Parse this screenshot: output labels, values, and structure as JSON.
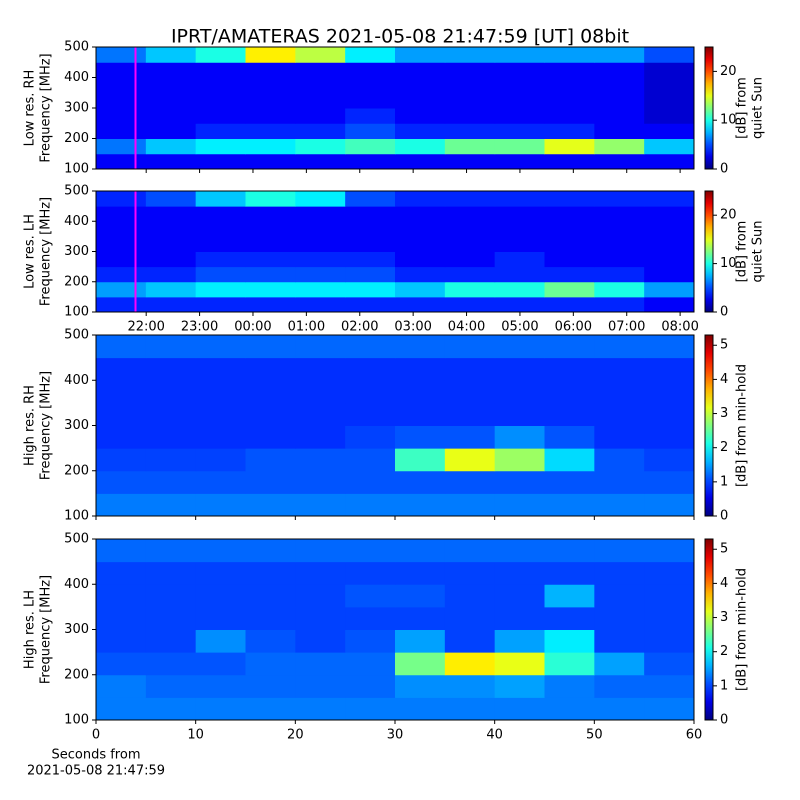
{
  "title": "IPRT/AMATERAS 2021-05-08 21:47:59 [UT]   08bit",
  "chart_data": [
    {
      "type": "heatmap",
      "ylabel": [
        "Low res. RH",
        "Frequency [MHz]"
      ],
      "colorbar_label": [
        "[dB] from",
        "quiet Sun"
      ],
      "xlim": [
        21.06,
        32.26
      ],
      "ylim": [
        100,
        500
      ],
      "yticks": [
        100,
        200,
        300,
        400,
        500
      ],
      "zlim": [
        0,
        25
      ],
      "zticks": [
        0,
        10,
        20
      ],
      "marker_x": 21.8,
      "marker_color": "#ff00ff",
      "z": [
        [
          3,
          3,
          3,
          3,
          3,
          3,
          3,
          3,
          3,
          3,
          3,
          3
        ],
        [
          6,
          8,
          9,
          9,
          10,
          11,
          10,
          12,
          12,
          15,
          13,
          8
        ],
        [
          3,
          3,
          4,
          4,
          4,
          5,
          4,
          4,
          4,
          4,
          3,
          3
        ],
        [
          3,
          3,
          3,
          3,
          3,
          4,
          3,
          3,
          3,
          3,
          3,
          2
        ],
        [
          3,
          3,
          3,
          3,
          3,
          3,
          3,
          3,
          3,
          3,
          3,
          2
        ],
        [
          3,
          3,
          3,
          3,
          3,
          3,
          3,
          3,
          3,
          3,
          3,
          2
        ],
        [
          3,
          3,
          3,
          3,
          3,
          3,
          3,
          3,
          3,
          3,
          3,
          2
        ],
        [
          6,
          8,
          10,
          16,
          14,
          9,
          7,
          7,
          7,
          7,
          7,
          5
        ]
      ]
    },
    {
      "type": "heatmap",
      "ylabel": [
        "Low res. LH",
        "Frequency [MHz]"
      ],
      "colorbar_label": [
        "[dB] from",
        "quiet Sun"
      ],
      "xlim": [
        21.06,
        32.26
      ],
      "ylim": [
        100,
        500
      ],
      "yticks": [
        100,
        200,
        300,
        400,
        500
      ],
      "zlim": [
        0,
        25
      ],
      "zticks": [
        0,
        10,
        20
      ],
      "xticks": [
        {
          "value": 22,
          "label": "22:00"
        },
        {
          "value": 23,
          "label": "23:00"
        },
        {
          "value": 24,
          "label": "00:00"
        },
        {
          "value": 25,
          "label": "01:00"
        },
        {
          "value": 26,
          "label": "02:00"
        },
        {
          "value": 27,
          "label": "03:00"
        },
        {
          "value": 28,
          "label": "04:00"
        },
        {
          "value": 29,
          "label": "05:00"
        },
        {
          "value": 30,
          "label": "06:00"
        },
        {
          "value": 31,
          "label": "07:00"
        },
        {
          "value": 32,
          "label": "08:00"
        }
      ],
      "marker_x": 21.8,
      "marker_color": "#ff00ff",
      "z": [
        [
          4,
          4,
          4,
          4,
          4,
          4,
          4,
          4,
          4,
          4,
          4,
          3
        ],
        [
          7,
          8,
          9,
          9,
          9,
          9,
          8,
          10,
          10,
          12,
          10,
          7
        ],
        [
          4,
          4,
          5,
          5,
          5,
          5,
          4,
          4,
          4,
          4,
          4,
          3
        ],
        [
          3,
          3,
          4,
          4,
          4,
          4,
          3,
          3,
          4,
          3,
          3,
          3
        ],
        [
          3,
          3,
          3,
          3,
          3,
          3,
          3,
          3,
          3,
          3,
          3,
          3
        ],
        [
          3,
          3,
          3,
          3,
          3,
          3,
          3,
          3,
          3,
          3,
          3,
          3
        ],
        [
          3,
          3,
          3,
          3,
          3,
          3,
          3,
          3,
          3,
          3,
          3,
          3
        ],
        [
          4,
          5,
          8,
          10,
          9,
          5,
          4,
          4,
          4,
          4,
          4,
          4
        ]
      ]
    },
    {
      "type": "heatmap",
      "ylabel": [
        "High res. RH",
        "Frequency [MHz]"
      ],
      "colorbar_label": [
        "[dB] from min-hold"
      ],
      "xlim": [
        0,
        60
      ],
      "ylim": [
        100,
        500
      ],
      "yticks": [
        100,
        200,
        300,
        400,
        500
      ],
      "zlim": [
        0,
        5.3
      ],
      "zticks": [
        0,
        1,
        2,
        3,
        4,
        5
      ],
      "z": [
        [
          1.3,
          1.3,
          1.3,
          1.3,
          1.3,
          1.3,
          1.3,
          1.3,
          1.3,
          1.3,
          1.3,
          1.3
        ],
        [
          1.1,
          1.1,
          1.1,
          1.1,
          1.1,
          1.1,
          1.1,
          1.1,
          1.1,
          1.1,
          1.1,
          1.1
        ],
        [
          1,
          1,
          1,
          1.1,
          1.1,
          1.1,
          2.3,
          3.2,
          2.8,
          1.8,
          1.1,
          1
        ],
        [
          0.9,
          0.9,
          0.9,
          0.9,
          0.9,
          1,
          1.1,
          1.1,
          1.4,
          1.1,
          0.9,
          0.9
        ],
        [
          0.9,
          0.9,
          0.9,
          0.9,
          0.9,
          0.9,
          0.9,
          0.9,
          0.9,
          0.9,
          0.9,
          0.9
        ],
        [
          0.9,
          0.9,
          0.9,
          0.9,
          0.9,
          0.9,
          0.9,
          0.9,
          0.9,
          0.9,
          0.9,
          0.9
        ],
        [
          0.9,
          0.9,
          0.9,
          0.9,
          0.9,
          0.9,
          0.9,
          0.9,
          0.9,
          0.9,
          0.9,
          0.9
        ],
        [
          1.2,
          1.2,
          1.2,
          1.2,
          1.2,
          1.2,
          1.2,
          1.2,
          1.2,
          1.2,
          1.2,
          1.2
        ]
      ]
    },
    {
      "type": "heatmap",
      "ylabel": [
        "High res. LH",
        "Frequency [MHz]"
      ],
      "colorbar_label": [
        "[dB] from min-hold"
      ],
      "xlim": [
        0,
        60
      ],
      "ylim": [
        100,
        500
      ],
      "yticks": [
        100,
        200,
        300,
        400,
        500
      ],
      "zlim": [
        0,
        5.3
      ],
      "zticks": [
        0,
        1,
        2,
        3,
        4,
        5
      ],
      "xticks": [
        0,
        10,
        20,
        30,
        40,
        50,
        60
      ],
      "xlabel": [
        "Seconds from",
        "2021-05-08 21:47:59"
      ],
      "z": [
        [
          1.3,
          1.3,
          1.3,
          1.3,
          1.3,
          1.3,
          1.3,
          1.3,
          1.3,
          1.3,
          1.3,
          1.3
        ],
        [
          1.3,
          1.2,
          1.2,
          1.2,
          1.2,
          1.2,
          1.4,
          1.4,
          1.5,
          1.3,
          1.2,
          1.2
        ],
        [
          1.1,
          1.1,
          1.1,
          1.2,
          1.2,
          1.2,
          2.6,
          3.4,
          3.2,
          2.2,
          1.5,
          1.1
        ],
        [
          1,
          1,
          1.4,
          1.1,
          1,
          1.1,
          1.5,
          1,
          1.5,
          1.9,
          1,
          1
        ],
        [
          1,
          1,
          1,
          1,
          1,
          1,
          1,
          1,
          1,
          1,
          1,
          1
        ],
        [
          1,
          1,
          1,
          1,
          1,
          1.1,
          1.1,
          1,
          1,
          1.6,
          1,
          1
        ],
        [
          1,
          1,
          1,
          1,
          1,
          1,
          1,
          1,
          1,
          1,
          1,
          1
        ],
        [
          1.2,
          1.2,
          1.2,
          1.2,
          1.2,
          1.2,
          1.2,
          1.2,
          1.2,
          1.2,
          1.2,
          1.2
        ]
      ]
    }
  ]
}
